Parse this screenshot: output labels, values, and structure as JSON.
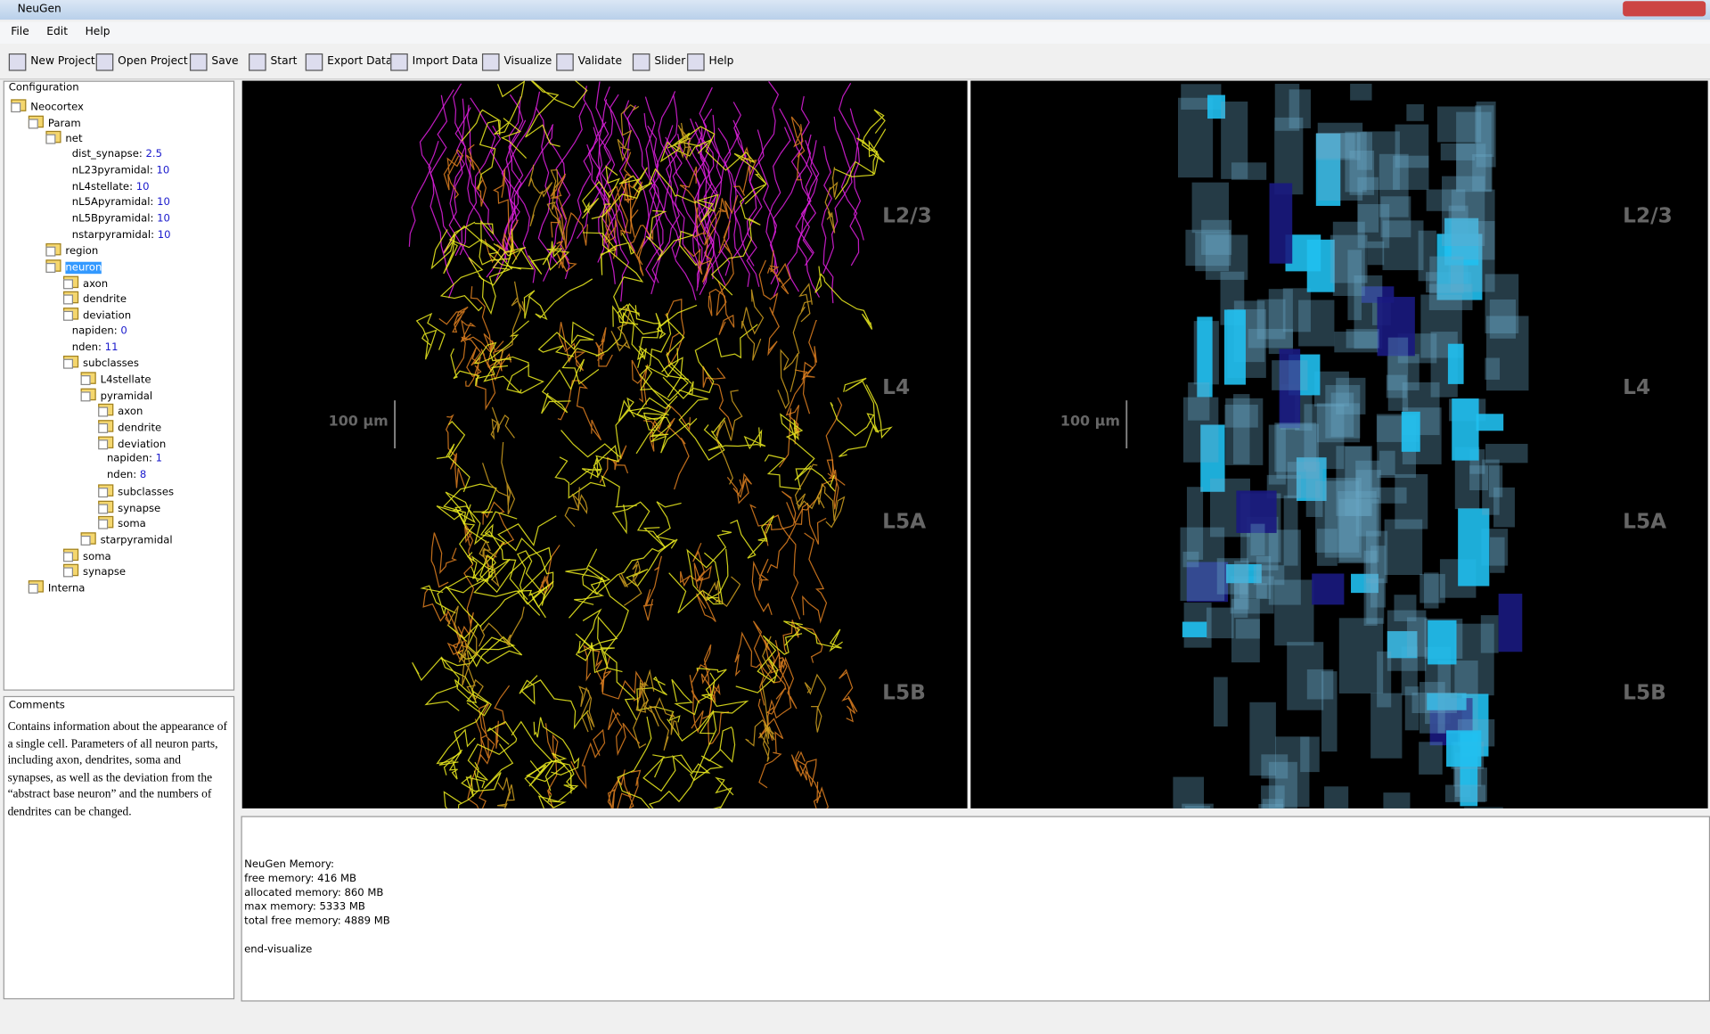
{
  "window": {
    "title": "NeuGen"
  },
  "menu": [
    "File",
    "Edit",
    "Help"
  ],
  "toolbar": [
    "New Project",
    "Open Project",
    "Save",
    "Start",
    "Export Data",
    "Import Data",
    "Visualize",
    "Validate",
    "Slider",
    "Help"
  ],
  "configuration": {
    "title": "Configuration",
    "root": {
      "label": "Neocortex",
      "children": [
        {
          "label": "Param",
          "children": [
            {
              "label": "net",
              "children": [
                {
                  "label": "dist_synapse:",
                  "value": 2.5
                },
                {
                  "label": "nL23pyramidal:",
                  "value": 10
                },
                {
                  "label": "nL4stellate:",
                  "value": 10
                },
                {
                  "label": "nL5Apyramidal:",
                  "value": 10
                },
                {
                  "label": "nL5Bpyramidal:",
                  "value": 10
                },
                {
                  "label": "nstarpyramidal:",
                  "value": 10
                }
              ]
            },
            {
              "label": "region",
              "folder": true
            },
            {
              "label": "neuron",
              "selected": true,
              "children": [
                {
                  "label": "axon",
                  "folder": true
                },
                {
                  "label": "dendrite",
                  "folder": true
                },
                {
                  "label": "deviation",
                  "folder": true
                },
                {
                  "label": "napiden:",
                  "value": 0
                },
                {
                  "label": "nden:",
                  "value": 11
                },
                {
                  "label": "subclasses",
                  "children": [
                    {
                      "label": "L4stellate",
                      "folder": true
                    },
                    {
                      "label": "pyramidal",
                      "children": [
                        {
                          "label": "axon",
                          "folder": true
                        },
                        {
                          "label": "dendrite",
                          "folder": true
                        },
                        {
                          "label": "deviation",
                          "folder": true
                        },
                        {
                          "label": "napiden:",
                          "value": 1
                        },
                        {
                          "label": "nden:",
                          "value": 8
                        },
                        {
                          "label": "subclasses",
                          "folder": true
                        },
                        {
                          "label": "synapse",
                          "folder": true
                        },
                        {
                          "label": "soma",
                          "folder": true
                        }
                      ]
                    },
                    {
                      "label": "starpyramidal",
                      "folder": true
                    }
                  ]
                },
                {
                  "label": "soma",
                  "folder": true
                },
                {
                  "label": "synapse",
                  "folder": true
                }
              ]
            }
          ]
        },
        {
          "label": "Interna",
          "folder": true
        }
      ]
    }
  },
  "comments": {
    "title": "Comments",
    "text": "Contains information about the appearance of a single cell. Parameters of all neuron parts, including axon, dendrites, soma and synapses, as well as the deviation from the “abstract base neuron” and the numbers of dendrites can be changed."
  },
  "views": [
    {
      "layers": [
        "L2/3",
        "L4",
        "L5A",
        "L5B"
      ],
      "scale_bar": "100 µm"
    },
    {
      "layers": [
        "L2/3",
        "L4",
        "L5A",
        "L5B"
      ],
      "scale_bar": "100 µm"
    }
  ],
  "console": [
    "NeuGen Memory:",
    "free memory: 416 MB",
    "allocated memory: 860 MB",
    "max memory: 5333 MB",
    "total free memory: 4889 MB",
    "",
    "end-visualize"
  ]
}
